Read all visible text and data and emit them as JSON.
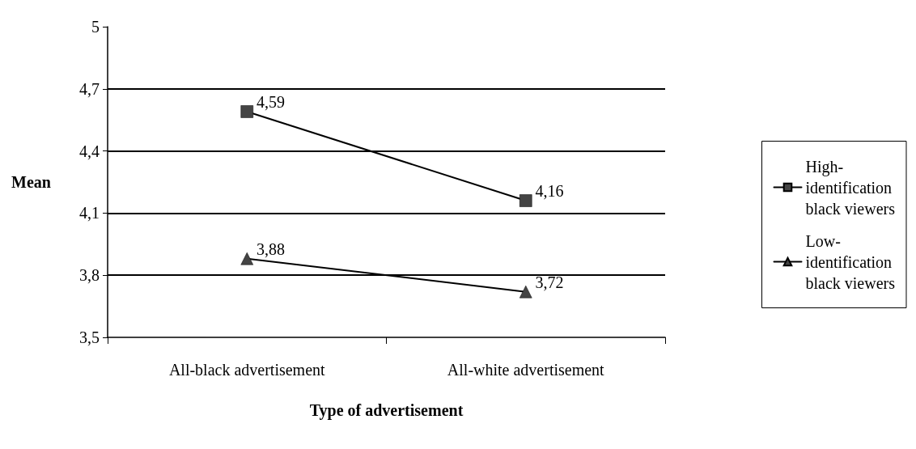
{
  "chart_data": {
    "type": "line",
    "xlabel": "Type of advertisement",
    "ylabel": "Mean",
    "categories": [
      "All-black advertisement",
      "All-white advertisement"
    ],
    "series": [
      {
        "name": "High-identification black viewers",
        "color": "#444444",
        "marker": "square",
        "values": [
          4.59,
          4.16
        ],
        "value_labels": [
          "4,59",
          "4,16"
        ]
      },
      {
        "name": "Low-identification black viewers",
        "color": "#444444",
        "marker": "triangle",
        "values": [
          3.88,
          3.72
        ],
        "value_labels": [
          "3,88",
          "3,72"
        ]
      }
    ],
    "ylim": [
      3.5,
      5
    ],
    "yticks": [
      {
        "value": 3.5,
        "label": "3,5"
      },
      {
        "value": 3.8,
        "label": "3,8"
      },
      {
        "value": 4.1,
        "label": "4,1"
      },
      {
        "value": 4.4,
        "label": "4,4"
      },
      {
        "value": 4.7,
        "label": "4,7"
      },
      {
        "value": 5,
        "label": "5"
      }
    ],
    "grid": "y",
    "legend": "right"
  }
}
